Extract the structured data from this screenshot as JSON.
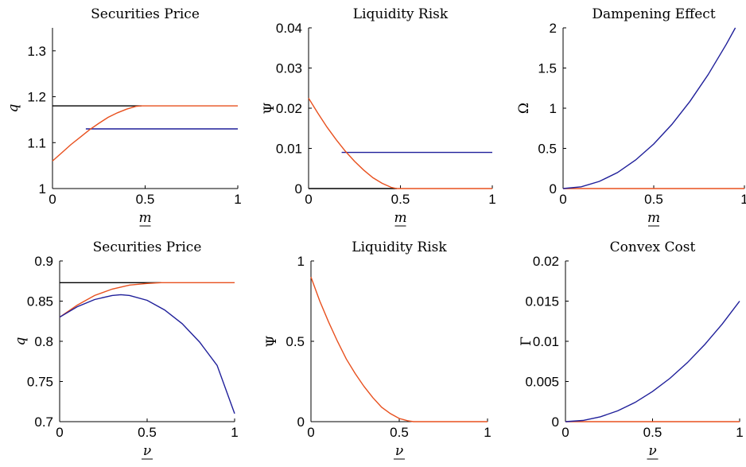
{
  "colors": {
    "black": "#000000",
    "orange": "#e8501e",
    "blue": "#1f1f9a"
  },
  "chart_data": [
    {
      "type": "line",
      "title": "Securities Price",
      "xlabel": "m",
      "ylabel": "q",
      "xlim": [
        0,
        1
      ],
      "ylim": [
        1,
        1.35
      ],
      "xticks": [
        "0",
        "0.5",
        "1"
      ],
      "xtick_values": [
        0,
        0.5,
        1
      ],
      "yticks": [
        "1",
        "1.1",
        "1.2",
        "1.3"
      ],
      "ytick_values": [
        1,
        1.1,
        1.2,
        1.3
      ],
      "series": [
        {
          "color": "black",
          "x": [
            0,
            0.48
          ],
          "y": [
            1.18,
            1.18
          ]
        },
        {
          "color": "blue",
          "x": [
            0.18,
            0.5,
            1
          ],
          "y": [
            1.13,
            1.13,
            1.13
          ]
        },
        {
          "color": "orange",
          "x": [
            0,
            0.05,
            0.1,
            0.15,
            0.2,
            0.25,
            0.3,
            0.35,
            0.4,
            0.45,
            0.48,
            1
          ],
          "y": [
            1.06,
            1.078,
            1.096,
            1.112,
            1.128,
            1.142,
            1.155,
            1.165,
            1.173,
            1.179,
            1.18,
            1.18
          ]
        }
      ]
    },
    {
      "type": "line",
      "title": "Liquidity Risk",
      "xlabel": "m",
      "ylabel": "Ψ",
      "xlim": [
        0,
        1
      ],
      "ylim": [
        0,
        0.04
      ],
      "xticks": [
        "0",
        "0.5",
        "1"
      ],
      "xtick_values": [
        0,
        0.5,
        1
      ],
      "yticks": [
        "0",
        "0.01",
        "0.02",
        "0.03",
        "0.04"
      ],
      "ytick_values": [
        0,
        0.01,
        0.02,
        0.03,
        0.04
      ],
      "series": [
        {
          "color": "black",
          "x": [
            0,
            0.48
          ],
          "y": [
            0,
            0
          ]
        },
        {
          "color": "blue",
          "x": [
            0.18,
            1
          ],
          "y": [
            0.009,
            0.009
          ]
        },
        {
          "color": "orange",
          "x": [
            0,
            0.05,
            0.1,
            0.15,
            0.2,
            0.25,
            0.3,
            0.35,
            0.4,
            0.45,
            0.48,
            1
          ],
          "y": [
            0.0225,
            0.0188,
            0.0153,
            0.0122,
            0.0093,
            0.0068,
            0.0046,
            0.0027,
            0.0013,
            0.0003,
            0,
            0
          ]
        }
      ]
    },
    {
      "type": "line",
      "title": "Dampening Effect",
      "xlabel": "m",
      "ylabel": "Ω",
      "xlim": [
        0,
        1
      ],
      "ylim": [
        0,
        2
      ],
      "xticks": [
        "0",
        "0.5",
        "1"
      ],
      "xtick_values": [
        0,
        0.5,
        1
      ],
      "yticks": [
        "0",
        "0.5",
        "1",
        "1.5",
        "2"
      ],
      "ytick_values": [
        0,
        0.5,
        1,
        1.5,
        2
      ],
      "series": [
        {
          "color": "orange",
          "x": [
            0,
            1
          ],
          "y": [
            0,
            0
          ]
        },
        {
          "color": "blue",
          "x": [
            0,
            0.1,
            0.2,
            0.3,
            0.4,
            0.5,
            0.6,
            0.7,
            0.8,
            0.9,
            0.95
          ],
          "y": [
            0,
            0.022,
            0.089,
            0.199,
            0.355,
            0.554,
            0.798,
            1.086,
            1.418,
            1.795,
            2.0
          ]
        }
      ]
    },
    {
      "type": "line",
      "title": "Securities Price",
      "xlabel": "ν",
      "ylabel": "q",
      "xlim": [
        0,
        1
      ],
      "ylim": [
        0.7,
        0.9
      ],
      "xticks": [
        "0",
        "0.5",
        "1"
      ],
      "xtick_values": [
        0,
        0.5,
        1
      ],
      "yticks": [
        "0.7",
        "0.75",
        "0.8",
        "0.85",
        "0.9"
      ],
      "ytick_values": [
        0.7,
        0.75,
        0.8,
        0.85,
        0.9
      ],
      "series": [
        {
          "color": "black",
          "x": [
            0,
            0.58
          ],
          "y": [
            0.873,
            0.873
          ]
        },
        {
          "color": "orange",
          "x": [
            0,
            0.1,
            0.2,
            0.3,
            0.4,
            0.5,
            0.58,
            1
          ],
          "y": [
            0.83,
            0.845,
            0.857,
            0.865,
            0.87,
            0.872,
            0.873,
            0.873
          ]
        },
        {
          "color": "blue",
          "x": [
            0,
            0.1,
            0.2,
            0.3,
            0.35,
            0.4,
            0.5,
            0.6,
            0.7,
            0.8,
            0.9,
            1
          ],
          "y": [
            0.83,
            0.843,
            0.852,
            0.857,
            0.858,
            0.857,
            0.851,
            0.839,
            0.822,
            0.799,
            0.77,
            0.71
          ]
        }
      ]
    },
    {
      "type": "line",
      "title": "Liquidity Risk",
      "xlabel": "ν",
      "ylabel": "Ψ",
      "xlim": [
        0,
        1
      ],
      "ylim": [
        0,
        1
      ],
      "xticks": [
        "0",
        "0.5",
        "1"
      ],
      "xtick_values": [
        0,
        0.5,
        1
      ],
      "yticks": [
        "0",
        "0.5",
        "1"
      ],
      "ytick_values": [
        0,
        0.5,
        1
      ],
      "series": [
        {
          "color": "orange",
          "x": [
            0,
            0.05,
            0.1,
            0.15,
            0.2,
            0.25,
            0.3,
            0.35,
            0.4,
            0.45,
            0.5,
            0.55,
            0.58,
            1
          ],
          "y": [
            0.9,
            0.75,
            0.62,
            0.5,
            0.39,
            0.3,
            0.22,
            0.15,
            0.09,
            0.05,
            0.02,
            0.005,
            0,
            0
          ]
        }
      ]
    },
    {
      "type": "line",
      "title": "Convex Cost",
      "xlabel": "ν",
      "ylabel": "Γ",
      "xlim": [
        0,
        1
      ],
      "ylim": [
        0,
        0.02
      ],
      "xticks": [
        "0",
        "0.5",
        "1"
      ],
      "xtick_values": [
        0,
        0.5,
        1
      ],
      "yticks": [
        "0",
        "0.005",
        "0.01",
        "0.015",
        "0.02"
      ],
      "ytick_values": [
        0,
        0.005,
        0.01,
        0.015,
        0.02
      ],
      "series": [
        {
          "color": "orange",
          "x": [
            0,
            1
          ],
          "y": [
            0,
            0
          ]
        },
        {
          "color": "blue",
          "x": [
            0,
            0.1,
            0.2,
            0.3,
            0.4,
            0.5,
            0.6,
            0.7,
            0.8,
            0.9,
            1
          ],
          "y": [
            0,
            0.00015,
            0.0006,
            0.00135,
            0.0024,
            0.00375,
            0.0054,
            0.00735,
            0.0096,
            0.01215,
            0.015
          ]
        }
      ]
    }
  ]
}
